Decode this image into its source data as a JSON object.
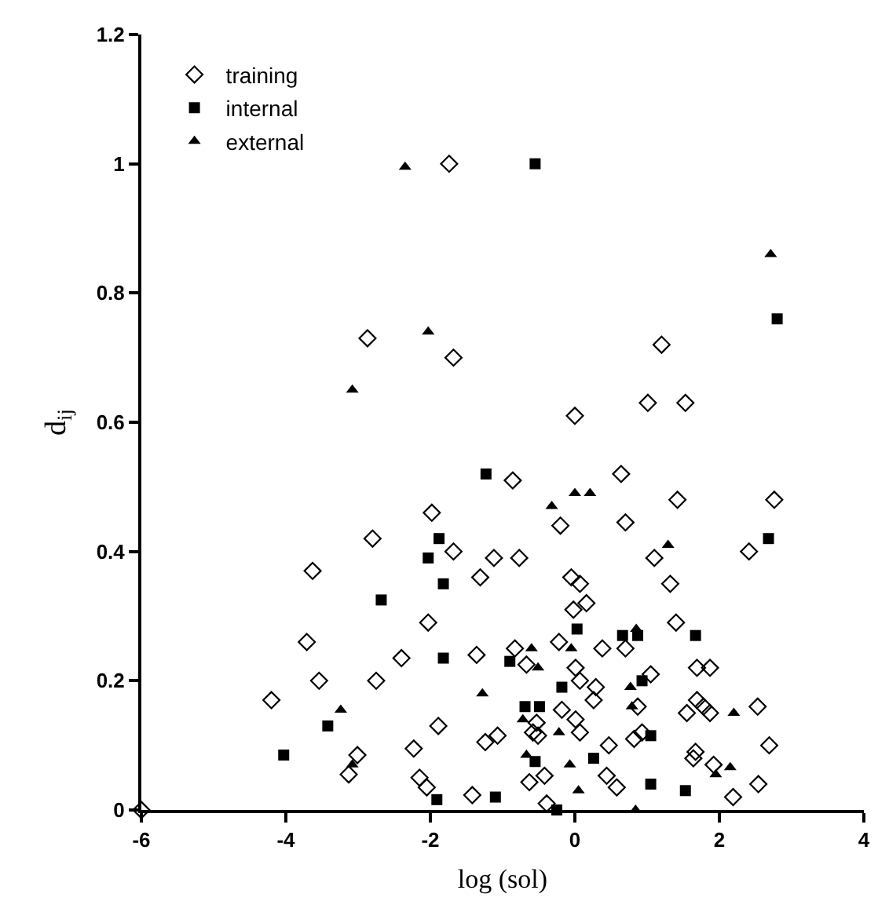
{
  "chart_data": {
    "type": "scatter",
    "xlabel": "log (sol)",
    "ylabel": "d$_{ij}$",
    "xlim": [
      -6,
      4
    ],
    "xticks": [
      -6,
      -4,
      -2,
      0,
      2,
      4
    ],
    "ylim": [
      0,
      1.2
    ],
    "yticks": [
      0,
      0.2,
      0.4,
      0.6,
      0.8,
      1,
      1.2
    ],
    "legend": "top left",
    "series": [
      {
        "name": "training",
        "color": "#000000",
        "marker": "diamond",
        "x": [
          -6,
          -1.74,
          -2.87,
          -1.68,
          1.2,
          1.01,
          1.53,
          0.0,
          -0.86,
          0.64,
          -0.2,
          0.7,
          1.42,
          2.76,
          1.1,
          2.41,
          -1.12,
          -0.77,
          -0.05,
          0.07,
          0.16,
          -0.02,
          1.32,
          1.4,
          0.7,
          0.38,
          -0.83,
          -0.22,
          -0.67,
          0.01,
          0.07,
          0.29,
          0.26,
          1.05,
          0.87,
          1.69,
          1.87,
          1.69,
          1.78,
          1.87,
          1.55,
          2.53,
          -0.53,
          -0.58,
          -0.51,
          -0.18,
          0.01,
          0.07,
          0.93,
          0.82,
          0.47,
          1.67,
          1.64,
          2.69,
          1.92,
          -0.63,
          -0.42,
          0.44,
          0.58,
          2.54,
          2.19,
          -0.39,
          -1.07,
          -1.98,
          -2.8,
          -1.68,
          -3.63,
          -1.31,
          -2.03,
          -3.71,
          -2.4,
          -1.36,
          -3.54,
          -2.75,
          -4.2,
          -1.89,
          -3.01,
          -3.13,
          -2.23,
          -1.24,
          -2.15,
          -2.05,
          -1.42
        ],
        "values": [
          0,
          1.0,
          0.73,
          0.7,
          0.72,
          0.63,
          0.63,
          0.61,
          0.51,
          0.52,
          0.44,
          0.445,
          0.48,
          0.48,
          0.39,
          0.4,
          0.39,
          0.39,
          0.36,
          0.35,
          0.32,
          0.31,
          0.35,
          0.29,
          0.25,
          0.25,
          0.25,
          0.26,
          0.225,
          0.22,
          0.2,
          0.19,
          0.17,
          0.21,
          0.16,
          0.22,
          0.22,
          0.17,
          0.16,
          0.15,
          0.15,
          0.16,
          0.135,
          0.12,
          0.115,
          0.155,
          0.14,
          0.12,
          0.12,
          0.11,
          0.1,
          0.09,
          0.08,
          0.1,
          0.07,
          0.043,
          0.053,
          0.053,
          0.035,
          0.04,
          0.02,
          0.01,
          0.115,
          0.46,
          0.42,
          0.4,
          0.37,
          0.36,
          0.29,
          0.26,
          0.235,
          0.24,
          0.2,
          0.2,
          0.17,
          0.13,
          0.085,
          0.055,
          0.095,
          0.105,
          0.05,
          0.035,
          0.023
        ]
      },
      {
        "name": "internal",
        "color": "#000000",
        "marker": "square",
        "x": [
          -1.23,
          -0.55,
          2.8,
          2.68,
          0.03,
          1.67,
          0.66,
          0.87,
          -0.9,
          -0.18,
          0.93,
          -0.69,
          -0.49,
          1.05,
          0.26,
          -0.55,
          1.05,
          1.53,
          -1.1,
          -0.25,
          -1.88,
          -2.03,
          -1.82,
          -2.68,
          -1.82,
          -3.42,
          -4.03,
          -1.91
        ],
        "values": [
          0.52,
          1.0,
          0.76,
          0.42,
          0.28,
          0.27,
          0.27,
          0.27,
          0.23,
          0.19,
          0.2,
          0.16,
          0.16,
          0.115,
          0.08,
          0.075,
          0.04,
          0.03,
          0.02,
          0.0,
          0.42,
          0.39,
          0.35,
          0.325,
          0.235,
          0.13,
          0.085,
          0.016
        ]
      },
      {
        "name": "external",
        "color": "#000000",
        "marker": "triangle",
        "x": [
          -2.35,
          -2.03,
          -3.08,
          2.71,
          0.0,
          0.21,
          -0.32,
          1.29,
          0.85,
          -0.6,
          -0.05,
          -0.51,
          0.77,
          0.79,
          2.2,
          -0.72,
          -0.22,
          -0.67,
          -0.07,
          2.15,
          1.95,
          0.05,
          0.84,
          -1.28,
          -3.24,
          -3.08
        ],
        "values": [
          0.995,
          0.74,
          0.65,
          0.86,
          0.49,
          0.49,
          0.47,
          0.41,
          0.28,
          0.25,
          0.25,
          0.22,
          0.19,
          0.16,
          0.15,
          0.14,
          0.12,
          0.085,
          0.07,
          0.066,
          0.055,
          0.03,
          0.0,
          0.18,
          0.155,
          0.07
        ]
      }
    ]
  }
}
